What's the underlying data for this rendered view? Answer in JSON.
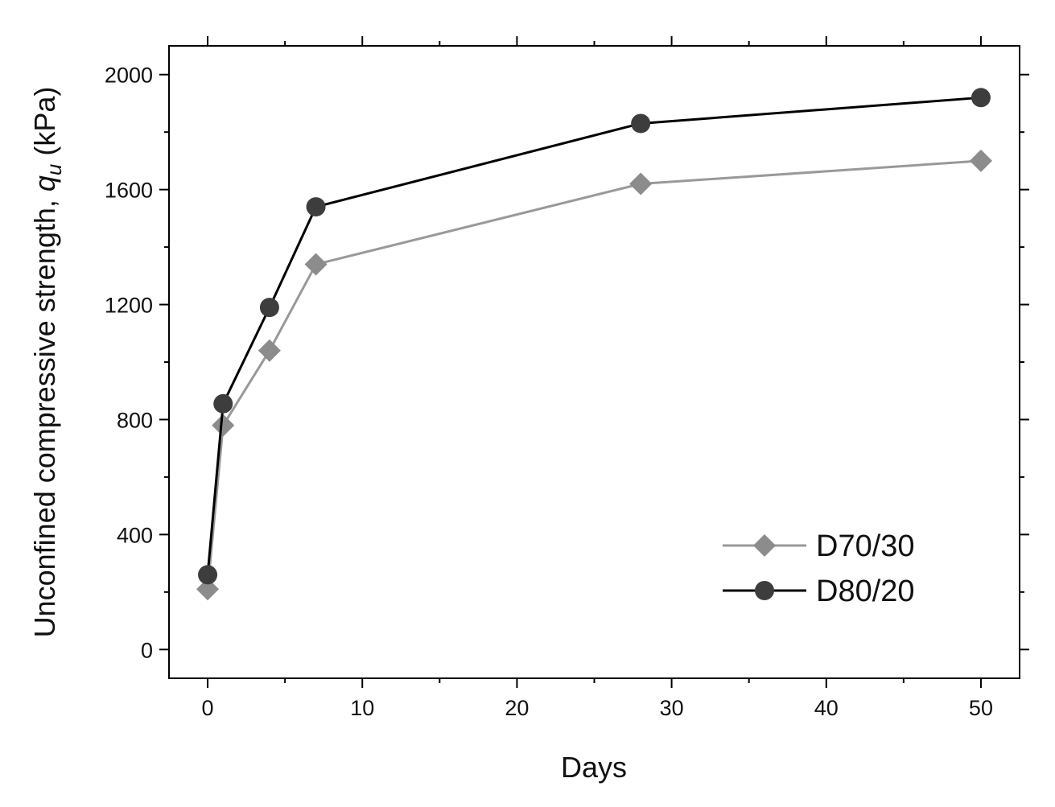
{
  "chart_data": {
    "type": "line",
    "xlabel": "Days",
    "ylabel_main": "Unconfined compressive strength, ",
    "ylabel_var": "q",
    "ylabel_sub": "u",
    "ylabel_unit": " (kPa)",
    "xlim": [
      -2.5,
      52.5
    ],
    "ylim": [
      -100,
      2100
    ],
    "xticks": [
      0,
      10,
      20,
      30,
      40,
      50
    ],
    "yticks": [
      0,
      400,
      800,
      1200,
      1600,
      2000
    ],
    "xticks_minor": [
      5,
      15,
      25,
      35,
      45
    ],
    "yticks_minor": [
      200,
      600,
      1000,
      1400,
      1800
    ],
    "legend_position": "lower-right",
    "series": [
      {
        "name": "D70/30",
        "marker": "diamond",
        "color": "#8c8c8c",
        "line_color": "#999999",
        "x": [
          0,
          1,
          4,
          7,
          28,
          50
        ],
        "y": [
          210,
          780,
          1040,
          1340,
          1620,
          1700
        ]
      },
      {
        "name": "D80/20",
        "marker": "circle",
        "color": "#3d3d3d",
        "line_color": "#000000",
        "x": [
          0,
          1,
          4,
          7,
          28,
          50
        ],
        "y": [
          260,
          855,
          1190,
          1540,
          1830,
          1920
        ]
      }
    ]
  }
}
